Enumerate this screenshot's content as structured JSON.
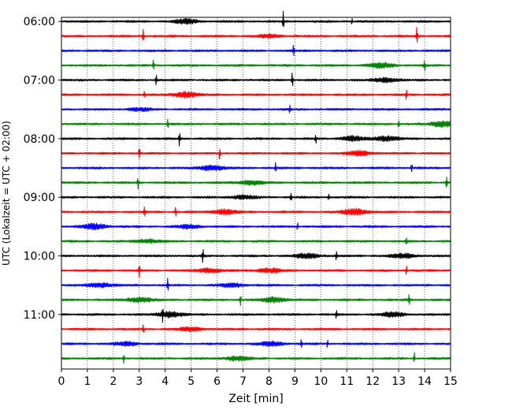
{
  "chart_data": {
    "type": "line",
    "title": "",
    "xlabel": "Zeit  [min]",
    "ylabel": "UTC (Lokalzeit = UTC + 02:00)",
    "xlim": [
      0,
      15
    ],
    "x_ticks": [
      0,
      1,
      2,
      3,
      4,
      5,
      6,
      7,
      8,
      9,
      10,
      11,
      12,
      13,
      14,
      15
    ],
    "y_tick_labels": [
      "06:00",
      "07:00",
      "08:00",
      "09:00",
      "10:00",
      "11:00"
    ],
    "grid": "vertical-dotted",
    "start_hour": "06:00",
    "end_hour": "12:00",
    "trace_interval_min": 15,
    "trace_colors": [
      "#000000",
      "#ff0000",
      "#0000ff",
      "#008000"
    ],
    "series": [
      {
        "start": "06:00",
        "color": "#000000",
        "spikes": [
          {
            "t": 8.55,
            "a": 1.4
          },
          {
            "t": 11.2,
            "a": 0.5
          }
        ],
        "bursts": [
          {
            "t": 4.8,
            "a": 0.6
          }
        ]
      },
      {
        "start": "06:15",
        "color": "#ff0000",
        "spikes": [
          {
            "t": 3.15,
            "a": 1.0
          },
          {
            "t": 13.7,
            "a": 1.5
          }
        ],
        "bursts": [
          {
            "t": 8.0,
            "a": 0.4
          }
        ]
      },
      {
        "start": "06:30",
        "color": "#0000ff",
        "spikes": [
          {
            "t": 8.95,
            "a": 1.0
          }
        ],
        "bursts": []
      },
      {
        "start": "06:45",
        "color": "#008000",
        "spikes": [
          {
            "t": 3.55,
            "a": 1.0
          },
          {
            "t": 14.0,
            "a": 0.9
          }
        ],
        "bursts": [
          {
            "t": 12.3,
            "a": 0.7
          }
        ]
      },
      {
        "start": "07:00",
        "color": "#000000",
        "spikes": [
          {
            "t": 3.65,
            "a": 0.8
          },
          {
            "t": 8.9,
            "a": 1.1
          }
        ],
        "bursts": [
          {
            "t": 12.5,
            "a": 0.6
          }
        ]
      },
      {
        "start": "07:15",
        "color": "#ff0000",
        "spikes": [
          {
            "t": 3.2,
            "a": 0.6
          },
          {
            "t": 13.3,
            "a": 1.1
          }
        ],
        "bursts": [
          {
            "t": 4.8,
            "a": 0.8
          }
        ]
      },
      {
        "start": "07:30",
        "color": "#0000ff",
        "spikes": [
          {
            "t": 8.8,
            "a": 0.6
          }
        ],
        "bursts": [
          {
            "t": 3.0,
            "a": 0.4
          }
        ]
      },
      {
        "start": "07:45",
        "color": "#008000",
        "spikes": [
          {
            "t": 4.1,
            "a": 0.9
          },
          {
            "t": 13.0,
            "a": 0.8
          }
        ],
        "bursts": [
          {
            "t": 14.7,
            "a": 0.8
          }
        ]
      },
      {
        "start": "08:00",
        "color": "#000000",
        "spikes": [
          {
            "t": 4.55,
            "a": 1.2
          },
          {
            "t": 9.8,
            "a": 0.8
          }
        ],
        "bursts": [
          {
            "t": 12.5,
            "a": 0.7
          },
          {
            "t": 11.2,
            "a": 0.6
          }
        ]
      },
      {
        "start": "08:15",
        "color": "#ff0000",
        "spikes": [
          {
            "t": 3.0,
            "a": 1.0
          },
          {
            "t": 6.1,
            "a": 1.0
          }
        ],
        "bursts": [
          {
            "t": 11.5,
            "a": 0.7
          }
        ]
      },
      {
        "start": "08:30",
        "color": "#0000ff",
        "spikes": [
          {
            "t": 8.25,
            "a": 0.8
          },
          {
            "t": 13.5,
            "a": 0.7
          }
        ],
        "bursts": [
          {
            "t": 5.8,
            "a": 0.7
          }
        ]
      },
      {
        "start": "08:45",
        "color": "#008000",
        "spikes": [
          {
            "t": 2.95,
            "a": 1.0
          },
          {
            "t": 14.85,
            "a": 1.1
          }
        ],
        "bursts": [
          {
            "t": 7.3,
            "a": 0.6
          }
        ]
      },
      {
        "start": "09:00",
        "color": "#000000",
        "spikes": [
          {
            "t": 8.85,
            "a": 0.8
          },
          {
            "t": 10.3,
            "a": 0.6
          }
        ],
        "bursts": [
          {
            "t": 7.0,
            "a": 0.5
          }
        ]
      },
      {
        "start": "09:15",
        "color": "#ff0000",
        "spikes": [
          {
            "t": 3.2,
            "a": 0.8
          },
          {
            "t": 4.4,
            "a": 0.7
          }
        ],
        "bursts": [
          {
            "t": 11.3,
            "a": 0.9
          },
          {
            "t": 6.3,
            "a": 0.7
          }
        ]
      },
      {
        "start": "09:30",
        "color": "#0000ff",
        "spikes": [
          {
            "t": 9.1,
            "a": 0.7
          }
        ],
        "bursts": [
          {
            "t": 1.3,
            "a": 0.8
          },
          {
            "t": 4.9,
            "a": 0.5
          }
        ]
      },
      {
        "start": "09:45",
        "color": "#008000",
        "spikes": [
          {
            "t": 13.3,
            "a": 0.7
          }
        ],
        "bursts": [
          {
            "t": 3.3,
            "a": 0.5
          }
        ]
      },
      {
        "start": "10:00",
        "color": "#000000",
        "spikes": [
          {
            "t": 5.45,
            "a": 1.2
          },
          {
            "t": 10.6,
            "a": 0.8
          }
        ],
        "bursts": [
          {
            "t": 9.5,
            "a": 0.7
          },
          {
            "t": 13.2,
            "a": 0.6
          }
        ]
      },
      {
        "start": "10:15",
        "color": "#ff0000",
        "spikes": [
          {
            "t": 3.0,
            "a": 1.0
          },
          {
            "t": 13.3,
            "a": 0.7
          }
        ],
        "bursts": [
          {
            "t": 5.7,
            "a": 0.6
          },
          {
            "t": 8.0,
            "a": 0.6
          }
        ]
      },
      {
        "start": "10:30",
        "color": "#0000ff",
        "spikes": [
          {
            "t": 4.1,
            "a": 1.0
          }
        ],
        "bursts": [
          {
            "t": 1.5,
            "a": 0.6
          },
          {
            "t": 6.6,
            "a": 0.5
          }
        ]
      },
      {
        "start": "10:45",
        "color": "#008000",
        "spikes": [
          {
            "t": 6.9,
            "a": 0.9
          },
          {
            "t": 13.4,
            "a": 0.8
          }
        ],
        "bursts": [
          {
            "t": 3.0,
            "a": 0.7
          },
          {
            "t": 8.2,
            "a": 0.7
          }
        ]
      },
      {
        "start": "11:00",
        "color": "#000000",
        "spikes": [
          {
            "t": 3.9,
            "a": 0.9
          },
          {
            "t": 10.6,
            "a": 0.8
          }
        ],
        "bursts": [
          {
            "t": 4.2,
            "a": 0.8
          },
          {
            "t": 12.8,
            "a": 0.6
          }
        ]
      },
      {
        "start": "11:15",
        "color": "#ff0000",
        "spikes": [
          {
            "t": 3.15,
            "a": 0.9
          }
        ],
        "bursts": [
          {
            "t": 5.0,
            "a": 0.5
          }
        ]
      },
      {
        "start": "11:30",
        "color": "#0000ff",
        "spikes": [
          {
            "t": 9.25,
            "a": 0.8
          },
          {
            "t": 10.25,
            "a": 0.6
          }
        ],
        "bursts": [
          {
            "t": 8.1,
            "a": 0.6
          },
          {
            "t": 2.5,
            "a": 0.5
          }
        ]
      },
      {
        "start": "11:45",
        "color": "#008000",
        "spikes": [
          {
            "t": 13.6,
            "a": 0.9
          },
          {
            "t": 2.4,
            "a": 0.7
          }
        ],
        "bursts": [
          {
            "t": 6.8,
            "a": 0.6
          }
        ]
      }
    ]
  }
}
